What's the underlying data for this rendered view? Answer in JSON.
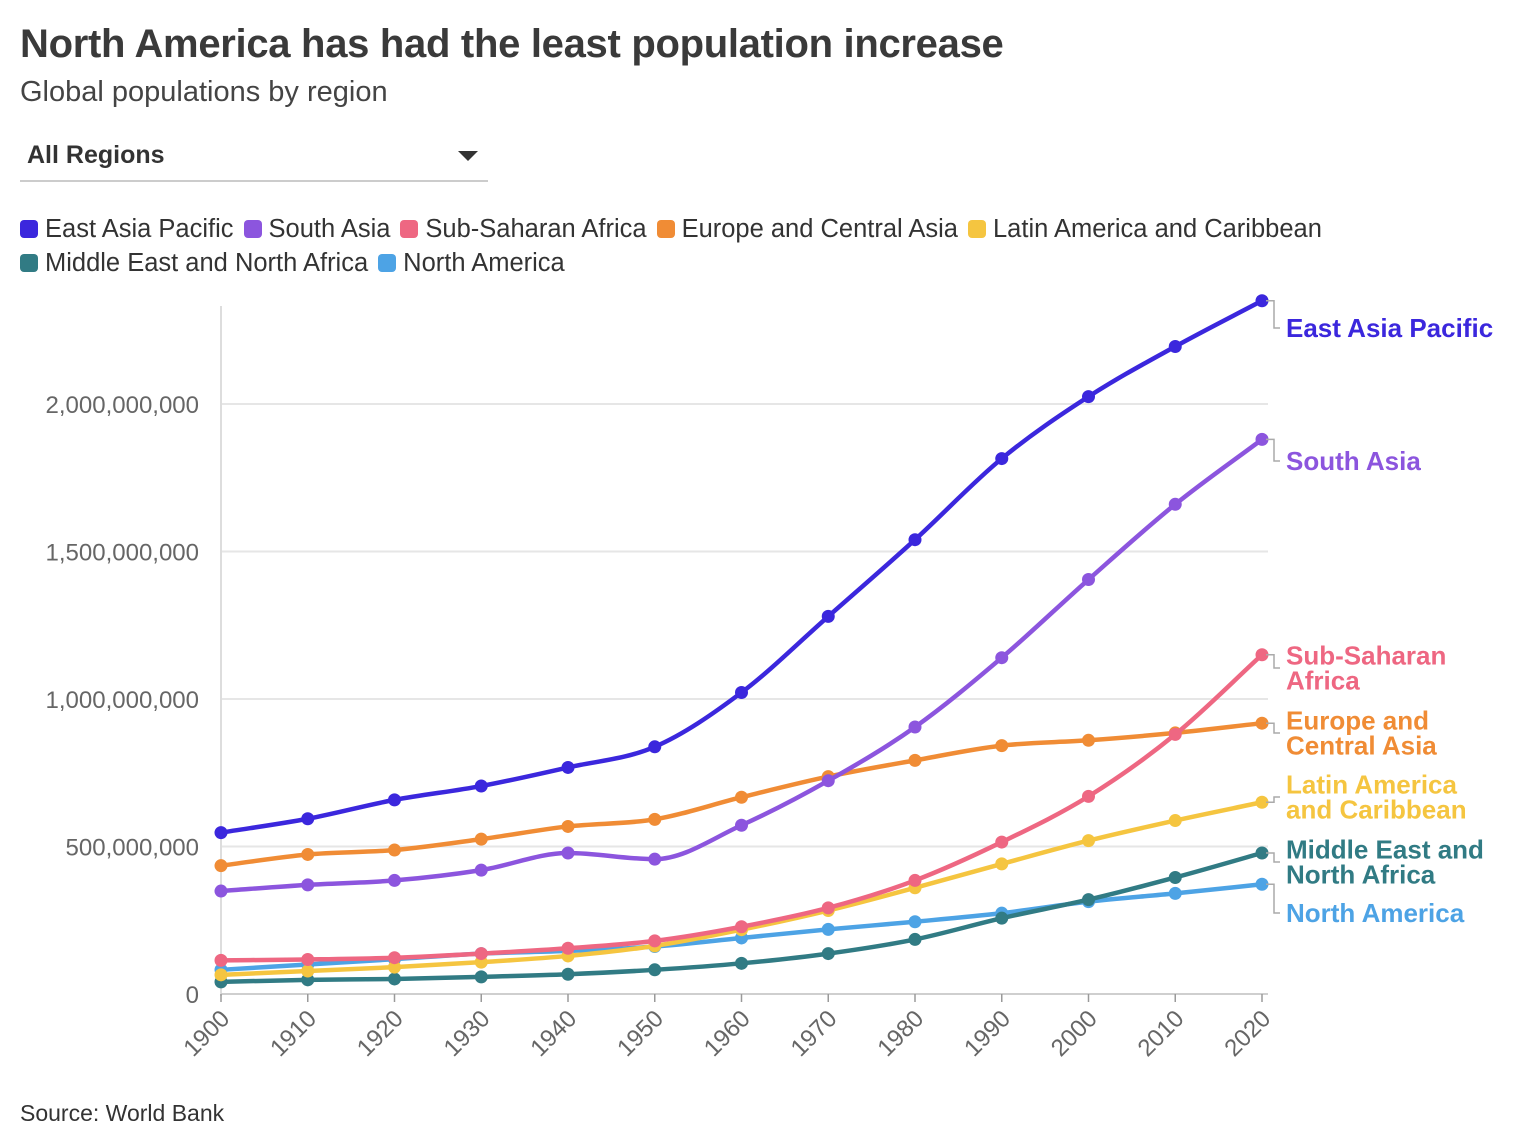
{
  "title": "North America has had the least population increase",
  "subtitle": "Global populations by region",
  "dropdown": {
    "selected": "All Regions"
  },
  "source": "Source: World Bank",
  "chart_data": {
    "type": "line",
    "title": "North America has had the least population increase",
    "subtitle": "Global populations by region",
    "xlabel": "",
    "ylabel": "",
    "x": [
      1900,
      1910,
      1920,
      1930,
      1940,
      1950,
      1960,
      1970,
      1980,
      1990,
      2000,
      2010,
      2020
    ],
    "ylim": [
      0,
      2400000000
    ],
    "yticks": [
      0,
      500000000,
      1000000000,
      1500000000,
      2000000000
    ],
    "ytick_labels": [
      "0",
      "500,000,000",
      "1,000,000,000",
      "1,500,000,000",
      "2,000,000,000"
    ],
    "grid": true,
    "legend_position": "top",
    "series": [
      {
        "name": "East Asia Pacific",
        "label": [
          "East Asia Pacific"
        ],
        "color": "#3b27dd",
        "values": [
          547000000,
          594000000,
          658000000,
          705000000,
          768000000,
          838000000,
          1022000000,
          1280000000,
          1540000000,
          1815000000,
          2025000000,
          2195000000,
          2350000000
        ]
      },
      {
        "name": "South Asia",
        "label": [
          "South Asia"
        ],
        "color": "#8c55de",
        "values": [
          349000000,
          370000000,
          385000000,
          420000000,
          478000000,
          457000000,
          572000000,
          723000000,
          905000000,
          1140000000,
          1405000000,
          1660000000,
          1880000000
        ]
      },
      {
        "name": "Sub-Saharan Africa",
        "label": [
          "Sub-Saharan",
          "Africa"
        ],
        "color": "#ee6782",
        "values": [
          114000000,
          117000000,
          123000000,
          137000000,
          155000000,
          180000000,
          228000000,
          292000000,
          385000000,
          515000000,
          670000000,
          880000000,
          1150000000
        ]
      },
      {
        "name": "Europe and Central Asia",
        "label": [
          "Europe and",
          "Central Asia"
        ],
        "color": "#f08c35",
        "values": [
          435000000,
          473000000,
          488000000,
          525000000,
          568000000,
          592000000,
          667000000,
          737000000,
          792000000,
          842000000,
          860000000,
          885000000,
          918000000
        ]
      },
      {
        "name": "Latin America and Caribbean",
        "label": [
          "Latin America",
          "and Caribbean"
        ],
        "color": "#f5c540",
        "values": [
          65000000,
          78000000,
          91000000,
          108000000,
          129000000,
          163000000,
          218000000,
          283000000,
          360000000,
          441000000,
          520000000,
          588000000,
          650000000
        ]
      },
      {
        "name": "Middle East and North Africa",
        "label": [
          "Middle East and",
          "North Africa"
        ],
        "color": "#317b84",
        "values": [
          41000000,
          48000000,
          51000000,
          58000000,
          67000000,
          82000000,
          104000000,
          137000000,
          185000000,
          257000000,
          320000000,
          395000000,
          478000000
        ]
      },
      {
        "name": "North America",
        "label": [
          "North America"
        ],
        "color": "#4da3e5",
        "values": [
          82000000,
          100000000,
          118000000,
          137000000,
          146000000,
          161000000,
          190000000,
          219000000,
          245000000,
          274000000,
          313000000,
          341000000,
          372000000
        ]
      }
    ]
  }
}
